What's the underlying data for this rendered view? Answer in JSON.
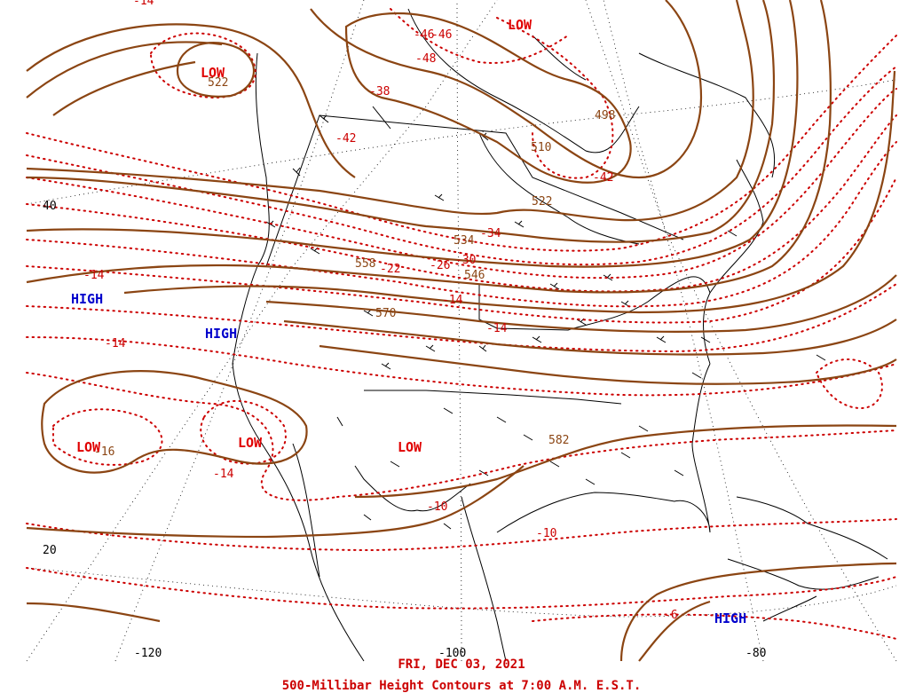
{
  "map": {
    "date": "FRI, DEC 03, 2021",
    "title": "500-Millibar Height Contours at 7:00 A.M. E.S.T.",
    "colors": {
      "height_contour": "#8B4513",
      "temperature_isotherm": "#cc0000",
      "low_label": "#e00000",
      "high_label": "#0000cc",
      "geography": "#000000"
    },
    "axis_labels": {
      "lat40": "40",
      "lat20": "20",
      "lon120": "-120",
      "lon100": "-100",
      "lon80": "-80"
    },
    "pressure_centers": [
      {
        "type": "LOW",
        "label": "LOW"
      },
      {
        "type": "LOW",
        "label": "LOW"
      },
      {
        "type": "LOW",
        "label": "LOW"
      },
      {
        "type": "LOW",
        "label": "LOW"
      },
      {
        "type": "LOW",
        "label": "LOW"
      },
      {
        "type": "HIGH",
        "label": "HIGH"
      },
      {
        "type": "HIGH",
        "label": "HIGH"
      },
      {
        "type": "HIGH",
        "label": "HIGH"
      }
    ],
    "height_labels": [
      "522",
      "498",
      "510",
      "522",
      "534",
      "546",
      "558",
      "570",
      "582",
      "-16"
    ],
    "temperature_labels": [
      "-46",
      "-46",
      "-48",
      "-38",
      "-42",
      "-42",
      "-34",
      "-30",
      "-26",
      "-22",
      "-14",
      "-14",
      "-14",
      "-14",
      "-14",
      "-10",
      "-10",
      "-14",
      "-6"
    ]
  }
}
